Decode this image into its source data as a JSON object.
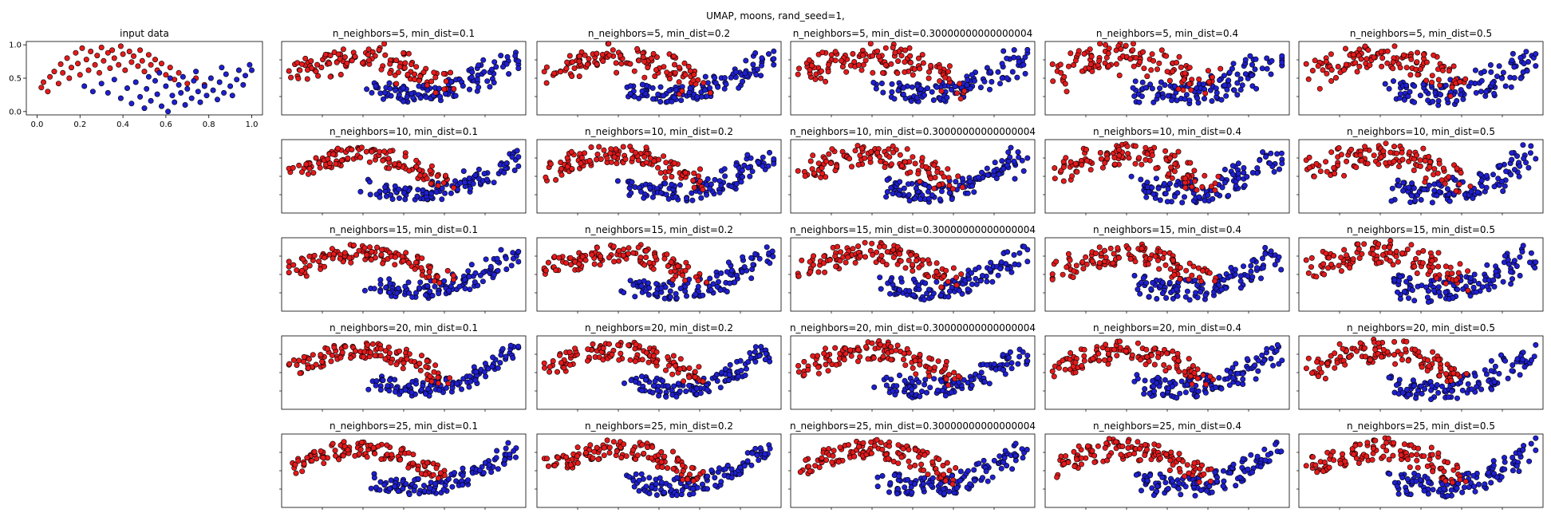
{
  "suptitle": "UMAP, moons, rand_seed=1,",
  "colors": {
    "class0": "#e41a1c",
    "class1": "#1f1fd0",
    "edge": "#000000"
  },
  "chart_data": [
    {
      "id": "input",
      "type": "scatter",
      "title": "input data",
      "xlim": [
        -0.05,
        1.05
      ],
      "ylim": [
        -0.05,
        1.05
      ],
      "xticks": [
        "0.0",
        "0.2",
        "0.4",
        "0.6",
        "0.8",
        "1.0"
      ],
      "yticks": [
        "0.0",
        "0.5",
        "1.0"
      ],
      "grid": false,
      "series": [
        {
          "class": 0,
          "points": [
            [
              0.02,
              0.36
            ],
            [
              0.03,
              0.44
            ],
            [
              0.05,
              0.3
            ],
            [
              0.06,
              0.52
            ],
            [
              0.08,
              0.6
            ],
            [
              0.1,
              0.42
            ],
            [
              0.11,
              0.71
            ],
            [
              0.12,
              0.58
            ],
            [
              0.14,
              0.8
            ],
            [
              0.15,
              0.5
            ],
            [
              0.16,
              0.66
            ],
            [
              0.18,
              0.88
            ],
            [
              0.19,
              0.72
            ],
            [
              0.2,
              0.55
            ],
            [
              0.21,
              0.95
            ],
            [
              0.23,
              0.78
            ],
            [
              0.24,
              0.62
            ],
            [
              0.25,
              0.9
            ],
            [
              0.27,
              0.7
            ],
            [
              0.28,
              0.84
            ],
            [
              0.29,
              0.58
            ],
            [
              0.3,
              0.96
            ],
            [
              0.31,
              0.76
            ],
            [
              0.33,
              0.88
            ],
            [
              0.34,
              0.65
            ],
            [
              0.35,
              0.92
            ],
            [
              0.36,
              0.8
            ],
            [
              0.38,
              0.7
            ],
            [
              0.39,
              0.98
            ],
            [
              0.4,
              0.86
            ],
            [
              0.41,
              0.62
            ],
            [
              0.43,
              0.9
            ],
            [
              0.44,
              0.74
            ],
            [
              0.45,
              0.83
            ],
            [
              0.47,
              0.68
            ],
            [
              0.48,
              0.92
            ],
            [
              0.49,
              0.76
            ],
            [
              0.5,
              0.6
            ],
            [
              0.52,
              0.85
            ],
            [
              0.53,
              0.7
            ],
            [
              0.55,
              0.78
            ],
            [
              0.56,
              0.62
            ],
            [
              0.58,
              0.72
            ],
            [
              0.6,
              0.55
            ],
            [
              0.62,
              0.66
            ],
            [
              0.64,
              0.48
            ],
            [
              0.66,
              0.58
            ],
            [
              0.7,
              0.42
            ],
            [
              0.74,
              0.5
            ],
            [
              0.78,
              0.4
            ]
          ]
        },
        {
          "class": 1,
          "points": [
            [
              0.22,
              0.38
            ],
            [
              0.26,
              0.3
            ],
            [
              0.3,
              0.42
            ],
            [
              0.33,
              0.28
            ],
            [
              0.36,
              0.48
            ],
            [
              0.39,
              0.2
            ],
            [
              0.42,
              0.35
            ],
            [
              0.44,
              0.12
            ],
            [
              0.46,
              0.44
            ],
            [
              0.48,
              0.22
            ],
            [
              0.5,
              0.05
            ],
            [
              0.51,
              0.34
            ],
            [
              0.53,
              0.16
            ],
            [
              0.55,
              0.46
            ],
            [
              0.56,
              0.26
            ],
            [
              0.58,
              0.08
            ],
            [
              0.6,
              0.38
            ],
            [
              0.61,
              0.0
            ],
            [
              0.63,
              0.24
            ],
            [
              0.64,
              0.14
            ],
            [
              0.66,
              0.4
            ],
            [
              0.67,
              0.28
            ],
            [
              0.69,
              0.1
            ],
            [
              0.7,
              0.34
            ],
            [
              0.72,
              0.2
            ],
            [
              0.73,
              0.46
            ],
            [
              0.75,
              0.3
            ],
            [
              0.76,
              0.14
            ],
            [
              0.78,
              0.38
            ],
            [
              0.79,
              0.24
            ],
            [
              0.81,
              0.5
            ],
            [
              0.82,
              0.32
            ],
            [
              0.84,
              0.18
            ],
            [
              0.85,
              0.44
            ],
            [
              0.87,
              0.28
            ],
            [
              0.88,
              0.56
            ],
            [
              0.9,
              0.38
            ],
            [
              0.91,
              0.24
            ],
            [
              0.93,
              0.48
            ],
            [
              0.94,
              0.62
            ],
            [
              0.96,
              0.4
            ],
            [
              0.97,
              0.54
            ],
            [
              0.99,
              0.7
            ],
            [
              1.0,
              0.62
            ],
            [
              0.68,
              0.52
            ],
            [
              0.62,
              0.5
            ],
            [
              0.57,
              0.58
            ],
            [
              0.86,
              0.66
            ],
            [
              0.74,
              0.6
            ],
            [
              0.52,
              0.52
            ]
          ]
        }
      ]
    },
    {
      "id": "r1c1",
      "type": "scatter",
      "title": "n_neighbors=5, min_dist=0.1"
    },
    {
      "id": "r1c2",
      "type": "scatter",
      "title": "n_neighbors=5, min_dist=0.2"
    },
    {
      "id": "r1c3",
      "type": "scatter",
      "title": "n_neighbors=5, min_dist=0.30000000000000004"
    },
    {
      "id": "r1c4",
      "type": "scatter",
      "title": "n_neighbors=5, min_dist=0.4"
    },
    {
      "id": "r1c5",
      "type": "scatter",
      "title": "n_neighbors=5, min_dist=0.5"
    },
    {
      "id": "r2c1",
      "type": "scatter",
      "title": "n_neighbors=10, min_dist=0.1"
    },
    {
      "id": "r2c2",
      "type": "scatter",
      "title": "n_neighbors=10, min_dist=0.2"
    },
    {
      "id": "r2c3",
      "type": "scatter",
      "title": "n_neighbors=10, min_dist=0.30000000000000004"
    },
    {
      "id": "r2c4",
      "type": "scatter",
      "title": "n_neighbors=10, min_dist=0.4"
    },
    {
      "id": "r2c5",
      "type": "scatter",
      "title": "n_neighbors=10, min_dist=0.5"
    },
    {
      "id": "r3c1",
      "type": "scatter",
      "title": "n_neighbors=15, min_dist=0.1"
    },
    {
      "id": "r3c2",
      "type": "scatter",
      "title": "n_neighbors=15, min_dist=0.2"
    },
    {
      "id": "r3c3",
      "type": "scatter",
      "title": "n_neighbors=15, min_dist=0.30000000000000004"
    },
    {
      "id": "r3c4",
      "type": "scatter",
      "title": "n_neighbors=15, min_dist=0.4"
    },
    {
      "id": "r3c5",
      "type": "scatter",
      "title": "n_neighbors=15, min_dist=0.5"
    },
    {
      "id": "r4c1",
      "type": "scatter",
      "title": "n_neighbors=20, min_dist=0.1"
    },
    {
      "id": "r4c2",
      "type": "scatter",
      "title": "n_neighbors=20, min_dist=0.2"
    },
    {
      "id": "r4c3",
      "type": "scatter",
      "title": "n_neighbors=20, min_dist=0.30000000000000004"
    },
    {
      "id": "r4c4",
      "type": "scatter",
      "title": "n_neighbors=20, min_dist=0.4"
    },
    {
      "id": "r4c5",
      "type": "scatter",
      "title": "n_neighbors=20, min_dist=0.5"
    },
    {
      "id": "r5c1",
      "type": "scatter",
      "title": "n_neighbors=25, min_dist=0.1"
    },
    {
      "id": "r5c2",
      "type": "scatter",
      "title": "n_neighbors=25, min_dist=0.2"
    },
    {
      "id": "r5c3",
      "type": "scatter",
      "title": "n_neighbors=25, min_dist=0.30000000000000004"
    },
    {
      "id": "r5c4",
      "type": "scatter",
      "title": "n_neighbors=25, min_dist=0.4"
    },
    {
      "id": "r5c5",
      "type": "scatter",
      "title": "n_neighbors=25, min_dist=0.5"
    }
  ]
}
